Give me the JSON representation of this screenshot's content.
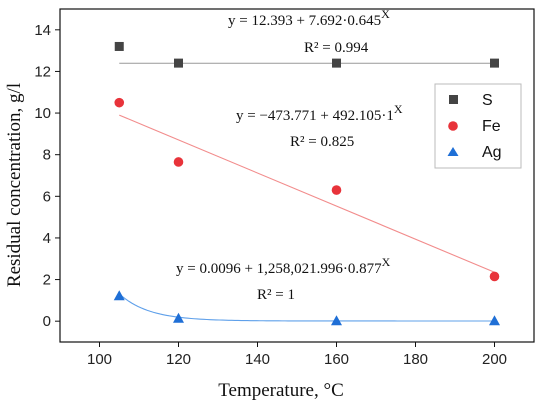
{
  "chart_data": {
    "type": "scatter",
    "title": "",
    "xlabel": "Temperature, °C",
    "ylabel": "Residual concentration, g/l",
    "xlim": [
      90,
      210
    ],
    "ylim": [
      -1,
      15
    ],
    "xticks": [
      100,
      120,
      140,
      160,
      180,
      200
    ],
    "yticks": [
      0,
      2,
      4,
      6,
      8,
      10,
      12,
      14
    ],
    "grid": false,
    "legend": "top-right",
    "series": [
      {
        "name": "S",
        "marker": "square",
        "color": "#444444",
        "fit_color": "#999999",
        "x": [
          105,
          120,
          160,
          200
        ],
        "y": [
          13.2,
          12.4,
          12.4,
          12.4
        ],
        "fit": {
          "a": 12.393,
          "b": 7.692,
          "c": 0.645,
          "kind": "exp"
        },
        "equation": "y = 12.393 + 7.692·0.645",
        "equation_exp": "X",
        "r2": "R² = 0.994"
      },
      {
        "name": "Fe",
        "marker": "circle",
        "color": "#e8333a",
        "fit_color": "#f28c8c",
        "x": [
          105,
          120,
          160,
          200
        ],
        "y": [
          10.5,
          7.65,
          6.3,
          2.15
        ],
        "fit": {
          "a": -473.771,
          "b": 492.105,
          "c": 1,
          "kind": "linear",
          "slope": -0.0795,
          "intercept": 18.25
        },
        "equation": "y = −473.771 + 492.105·1",
        "equation_exp": "X",
        "r2": "R² = 0.825"
      },
      {
        "name": "Ag",
        "marker": "triangle",
        "color": "#1f6fd6",
        "fit_color": "#5fa0ea",
        "x": [
          105,
          120,
          160,
          200
        ],
        "y": [
          1.2,
          0.12,
          0.0,
          0.0
        ],
        "fit": {
          "a": 0.0096,
          "b": 1258021.996,
          "c": 0.877,
          "kind": "exp"
        },
        "equation": "y = 0.0096 + 1,258,021.996·0.877",
        "equation_exp": "X",
        "r2": "R² = 1"
      }
    ]
  }
}
